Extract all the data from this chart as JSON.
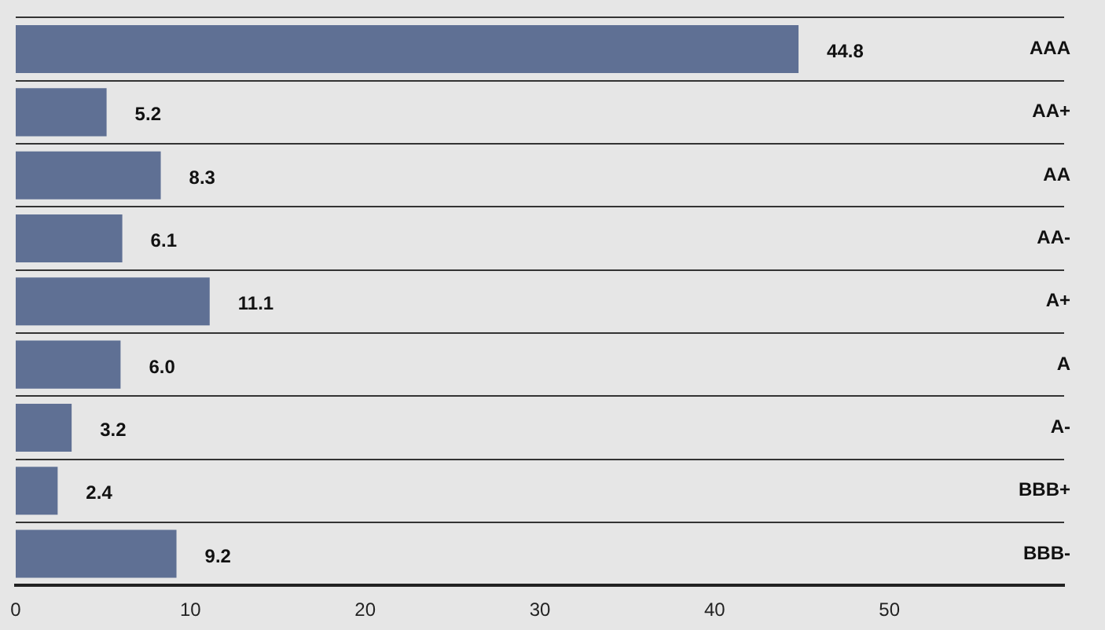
{
  "chart_data": {
    "type": "bar",
    "orientation": "horizontal",
    "categories": [
      "AAA",
      "AA+",
      "AA",
      "AA-",
      "A+",
      "A",
      "A-",
      "BBB+",
      "BBB-"
    ],
    "values": [
      44.8,
      5.2,
      8.3,
      6.1,
      11.1,
      6.0,
      3.2,
      2.4,
      9.2
    ],
    "value_labels": [
      "44.8",
      "5.2",
      "8.3",
      "6.1",
      "11.1",
      "6.0",
      "3.2",
      "2.4",
      "9.2"
    ],
    "color": "#5f7094",
    "xlim": [
      0,
      60
    ],
    "xticks": [
      0,
      10,
      20,
      30,
      40,
      50
    ],
    "grid": "y",
    "legend": false
  }
}
